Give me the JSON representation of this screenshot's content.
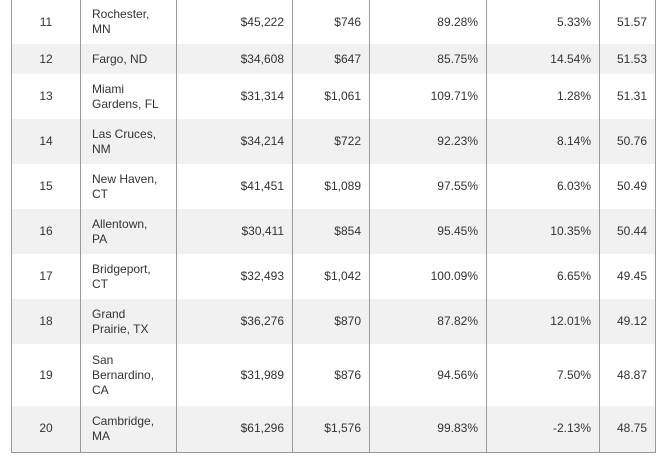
{
  "rows": [
    {
      "rank": "11",
      "city": [
        "Rochester,",
        "MN"
      ],
      "income": "$45,222",
      "rent": "$746",
      "pct1": "89.28%",
      "pct2": "5.33%",
      "score": "51.57"
    },
    {
      "rank": "12",
      "city": [
        "Fargo, ND"
      ],
      "income": "$34,608",
      "rent": "$647",
      "pct1": "85.75%",
      "pct2": "14.54%",
      "score": "51.53"
    },
    {
      "rank": "13",
      "city": [
        "Miami",
        "Gardens, FL"
      ],
      "income": "$31,314",
      "rent": "$1,061",
      "pct1": "109.71%",
      "pct2": "1.28%",
      "score": "51.31"
    },
    {
      "rank": "14",
      "city": [
        "Las Cruces,",
        "NM"
      ],
      "income": "$34,214",
      "rent": "$722",
      "pct1": "92.23%",
      "pct2": "8.14%",
      "score": "50.76"
    },
    {
      "rank": "15",
      "city": [
        "New Haven,",
        "CT"
      ],
      "income": "$41,451",
      "rent": "$1,089",
      "pct1": "97.55%",
      "pct2": "6.03%",
      "score": "50.49"
    },
    {
      "rank": "16",
      "city": [
        "Allentown,",
        "PA"
      ],
      "income": "$30,411",
      "rent": "$854",
      "pct1": "95.45%",
      "pct2": "10.35%",
      "score": "50.44"
    },
    {
      "rank": "17",
      "city": [
        "Bridgeport,",
        "CT"
      ],
      "income": "$32,493",
      "rent": "$1,042",
      "pct1": "100.09%",
      "pct2": "6.65%",
      "score": "49.45"
    },
    {
      "rank": "18",
      "city": [
        "Grand",
        "Prairie, TX"
      ],
      "income": "$36,276",
      "rent": "$870",
      "pct1": "87.82%",
      "pct2": "12.01%",
      "score": "49.12"
    },
    {
      "rank": "19",
      "city": [
        "San",
        "Bernardino,",
        "CA"
      ],
      "income": "$31,989",
      "rent": "$876",
      "pct1": "94.56%",
      "pct2": "7.50%",
      "score": "48.87"
    },
    {
      "rank": "20",
      "city": [
        "Cambridge,",
        "MA"
      ],
      "income": "$61,296",
      "rent": "$1,576",
      "pct1": "99.83%",
      "pct2": "-2.13%",
      "score": "48.75"
    }
  ]
}
